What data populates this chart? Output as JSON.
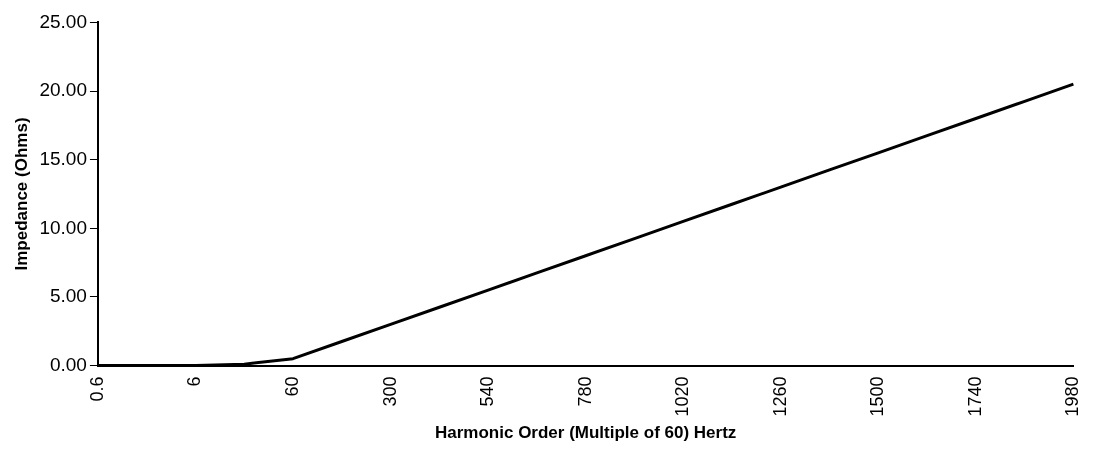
{
  "chart_data": {
    "type": "line",
    "xlabel": "Harmonic Order (Multiple of 60) Hertz",
    "ylabel": "Impedance (Ohms)",
    "categories": [
      "0.6",
      null,
      "6",
      null,
      "60",
      null,
      "300",
      null,
      "540",
      null,
      "780",
      null,
      "1020",
      null,
      "1260",
      null,
      "1500",
      null,
      "1740",
      null,
      "1980"
    ],
    "series": [
      {
        "color": "#000000",
        "values": [
          0,
          0,
          0,
          0.1,
          0.5,
          1.75,
          3,
          4.25,
          5.5,
          6.75,
          8,
          9.25,
          10.5,
          11.75,
          13,
          14.25,
          15.5,
          16.75,
          18,
          19.25,
          20.5
        ]
      }
    ],
    "ylim": [
      0,
      25
    ],
    "yticks": [
      {
        "value": 0,
        "label": "0.00"
      },
      {
        "value": 5,
        "label": "5.00"
      },
      {
        "value": 10,
        "label": "10.00"
      },
      {
        "value": 15,
        "label": "15.00"
      },
      {
        "value": 20,
        "label": "20.00"
      },
      {
        "value": 25,
        "label": "25.00"
      }
    ],
    "grid": false,
    "legend": false,
    "marker": "none",
    "line_style": "solid"
  }
}
